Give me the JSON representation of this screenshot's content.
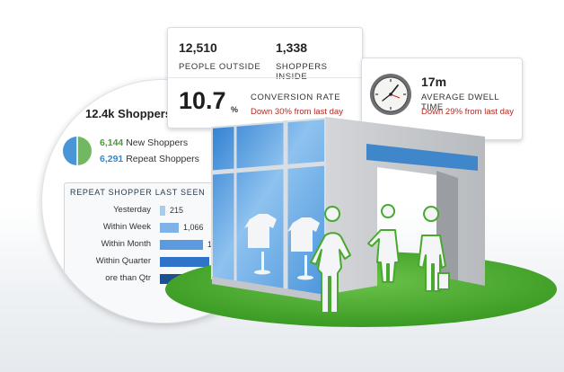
{
  "shoppers_card": {
    "title": "12.4k Shoppers",
    "new_value": "6,144",
    "new_label": "New Shoppers",
    "repeat_value": "6,291",
    "repeat_label": "Repeat Shoppers",
    "colors": {
      "new": "#72b861",
      "repeat": "#4a95d6"
    },
    "section_title": "REPEAT SHOPPER LAST SEEN",
    "rows": [
      {
        "label": "Yesterday",
        "value": "215",
        "fraction": 0.05
      },
      {
        "label": "Within Week",
        "value": "1,066",
        "fraction": 0.34
      },
      {
        "label": "Within Month",
        "value": "1,492",
        "fraction": 0.78
      },
      {
        "label": "Within Quarter",
        "value": "1,5",
        "fraction": 0.88
      },
      {
        "label": "ore than Qtr",
        "value": "",
        "fraction": 1.0
      }
    ]
  },
  "stats_card": {
    "people_outside": {
      "value": "12,510",
      "label": "PEOPLE OUTSIDE"
    },
    "shoppers_inside": {
      "value": "1,338",
      "label": "SHOPPERS INSIDE"
    },
    "conversion": {
      "value": "10.7",
      "unit": "%",
      "label": "CONVERSION RATE",
      "change": "Down 30% from last day"
    }
  },
  "dwell_card": {
    "value": "17m",
    "label": "AVERAGE DWELL TIME",
    "change": "Down 29% from last day",
    "icon": "clock-icon"
  }
}
